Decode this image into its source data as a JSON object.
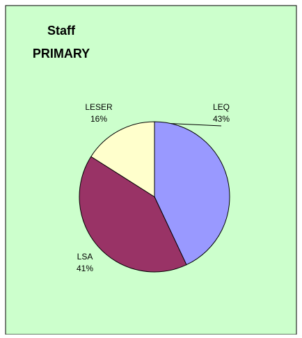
{
  "chart_data": {
    "type": "pie",
    "title": "Staff",
    "subtitle": "PRIMARY",
    "categories": [
      "LEQ",
      "LSA",
      "LESER"
    ],
    "values": [
      43,
      41,
      16
    ],
    "value_labels": [
      "43%",
      "41%",
      "16%"
    ],
    "colors": [
      "#9999ff",
      "#993366",
      "#ffffcc"
    ]
  }
}
